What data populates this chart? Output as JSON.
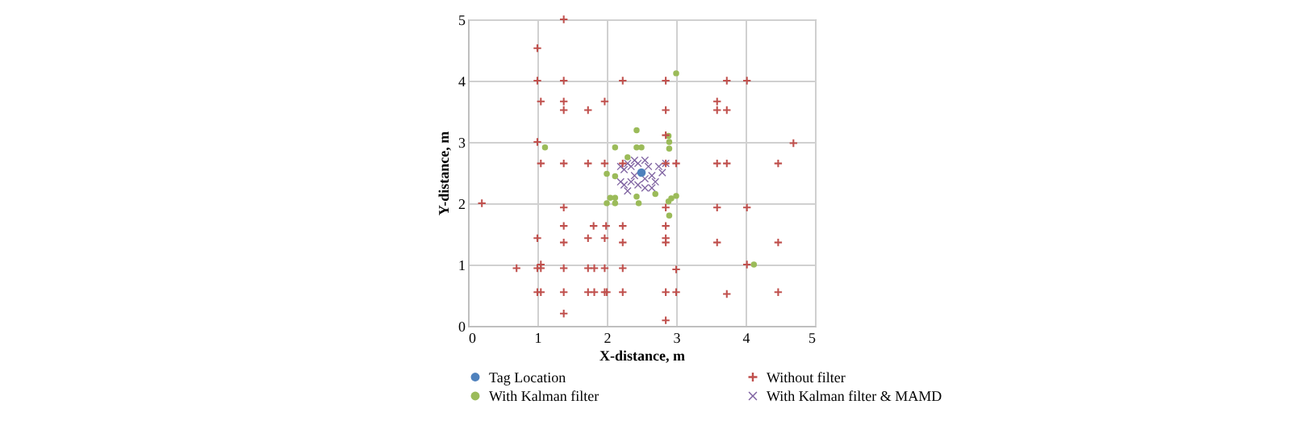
{
  "chart_data": {
    "type": "scatter",
    "xlabel": "X-distance, m",
    "ylabel": "Y-distance, m",
    "xlim": [
      0,
      5
    ],
    "xticks": [
      0,
      1,
      2,
      3,
      4,
      5
    ],
    "ylim": [
      0,
      5
    ],
    "yticks": [
      0,
      1,
      2,
      3,
      4,
      5
    ],
    "grid": true,
    "legend": "bottom",
    "series": [
      {
        "name": "Tag Location",
        "color": "#4f81bd",
        "marker": "circle",
        "x": [
          2.5
        ],
        "values": [
          2.5
        ]
      },
      {
        "name": "Without filter",
        "color": "#c0504d",
        "marker": "plus",
        "x": [
          1.38,
          1.0,
          1.0,
          1.38,
          2.23,
          1.05,
          1.38,
          1.97,
          1.38,
          1.73,
          1.0,
          1.05,
          1.38,
          1.73,
          1.97,
          2.23,
          2.85,
          3.73,
          4.02,
          3.59,
          3.59,
          3.73,
          2.85,
          2.85,
          4.69,
          2.85,
          3.0,
          3.59,
          3.73,
          4.47,
          0.2,
          1.38,
          1.38,
          1.81,
          1.99,
          2.23,
          1.0,
          1.73,
          1.97,
          1.38,
          2.23,
          0.7,
          1.0,
          1.05,
          1.05,
          1.38,
          1.73,
          1.82,
          1.97,
          2.23,
          1.0,
          1.05,
          1.38,
          1.73,
          1.82,
          1.97,
          2.0,
          2.23,
          1.38,
          2.85,
          3.59,
          4.02,
          2.85,
          2.85,
          2.85,
          3.59,
          4.47,
          3.0,
          4.02,
          2.85,
          3.0,
          3.73,
          4.47,
          2.85
        ],
        "values": [
          5.0,
          4.53,
          4.0,
          4.0,
          4.0,
          3.66,
          3.66,
          3.66,
          3.52,
          3.52,
          3.0,
          2.65,
          2.65,
          2.65,
          2.65,
          2.65,
          4.0,
          4.0,
          4.0,
          3.66,
          3.52,
          3.52,
          3.52,
          3.11,
          2.98,
          2.65,
          2.65,
          2.65,
          2.65,
          2.65,
          2.0,
          1.93,
          1.63,
          1.63,
          1.63,
          1.63,
          1.43,
          1.43,
          1.43,
          1.36,
          1.36,
          0.94,
          0.94,
          0.94,
          1.0,
          0.94,
          0.94,
          0.94,
          0.94,
          0.94,
          0.55,
          0.55,
          0.55,
          0.55,
          0.55,
          0.55,
          0.55,
          0.55,
          0.2,
          1.93,
          1.93,
          1.93,
          1.63,
          1.43,
          1.36,
          1.36,
          1.36,
          0.92,
          1.0,
          0.55,
          0.55,
          0.52,
          0.55,
          0.09
        ]
      },
      {
        "name": "With Kalman filter",
        "color": "#9bbb59",
        "marker": "circle",
        "x": [
          1.11,
          2.43,
          2.12,
          2.43,
          2.5,
          2.0,
          2.12,
          3.0,
          2.89,
          2.9,
          2.9,
          2.05,
          2.12,
          2.0,
          2.12,
          2.43,
          2.46,
          3.0,
          2.93,
          2.89,
          2.9,
          4.12,
          2.3,
          2.7
        ],
        "values": [
          2.91,
          3.19,
          2.91,
          2.91,
          2.91,
          2.48,
          2.44,
          4.12,
          3.1,
          3.0,
          2.89,
          2.09,
          2.09,
          2.0,
          2.0,
          2.11,
          2.0,
          2.12,
          2.08,
          2.03,
          1.8,
          1.0,
          2.75,
          2.15
        ]
      },
      {
        "name": "With Kalman filter & MAMD",
        "color": "#8064a2",
        "marker": "cross",
        "x": [
          2.2,
          2.25,
          2.3,
          2.35,
          2.4,
          2.45,
          2.55,
          2.6,
          2.7,
          2.75,
          2.8,
          2.65,
          2.7,
          2.6,
          2.55,
          2.45,
          2.35,
          2.25,
          2.3,
          2.4,
          2.5,
          2.55,
          2.65,
          2.2,
          2.85
        ],
        "values": [
          2.6,
          2.55,
          2.65,
          2.6,
          2.7,
          2.65,
          2.7,
          2.6,
          null,
          2.6,
          2.5,
          2.45,
          2.35,
          null,
          2.25,
          2.3,
          2.35,
          2.3,
          2.2,
          2.45,
          null,
          2.4,
          2.25,
          2.35,
          2.65
        ]
      }
    ]
  }
}
